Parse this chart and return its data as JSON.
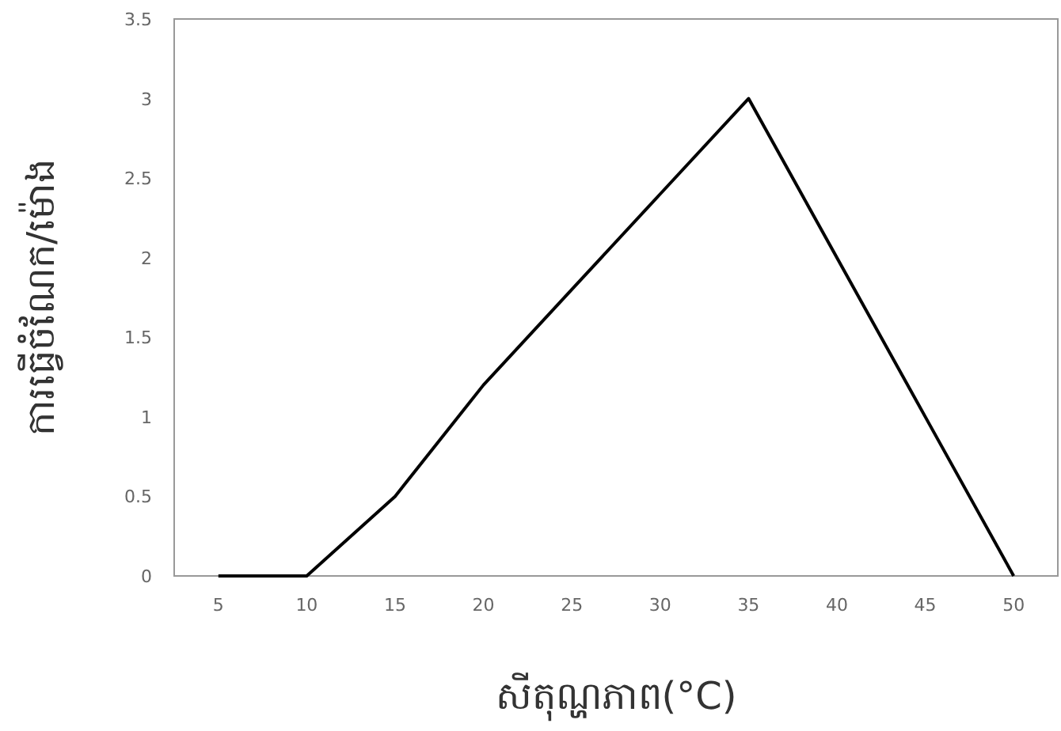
{
  "chart_data": {
    "type": "line",
    "xlabel": "សីតុណ្ហភាព(°C)",
    "ylabel": "ការធ្វើចំណែក/ម៉ោង",
    "categories": [
      "5",
      "10",
      "15",
      "20",
      "25",
      "30",
      "35",
      "40",
      "45",
      "50"
    ],
    "values": [
      0,
      0,
      0.5,
      1.2,
      1.8,
      2.4,
      3,
      2,
      1,
      0
    ],
    "color": "#000000",
    "ylim": [
      0,
      3.5
    ],
    "yticks": [
      0,
      0.5,
      1,
      1.5,
      2,
      2.5,
      3,
      3.5
    ]
  }
}
